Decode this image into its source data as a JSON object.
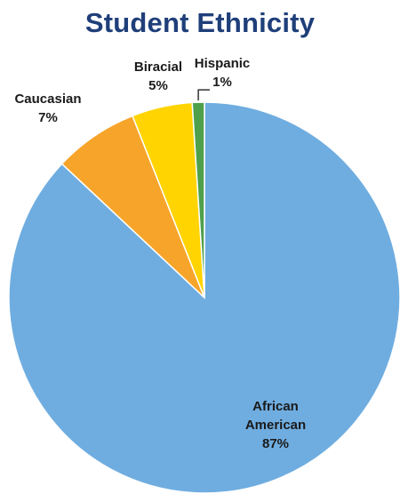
{
  "chart_data": {
    "type": "pie",
    "title": "Student Ethnicity",
    "slices": [
      {
        "label": "African American",
        "value": 87,
        "value_label": "87%",
        "color": "#6fade0"
      },
      {
        "label": "Caucasian",
        "value": 7,
        "value_label": "7%",
        "color": "#f7a42a"
      },
      {
        "label": "Biracial",
        "value": 5,
        "value_label": "5%",
        "color": "#ffd400"
      },
      {
        "label": "Hispanic",
        "value": 1,
        "value_label": "1%",
        "color": "#4ea04b"
      }
    ],
    "start_angle_deg": 0,
    "direction": "clockwise",
    "legend": "none"
  }
}
